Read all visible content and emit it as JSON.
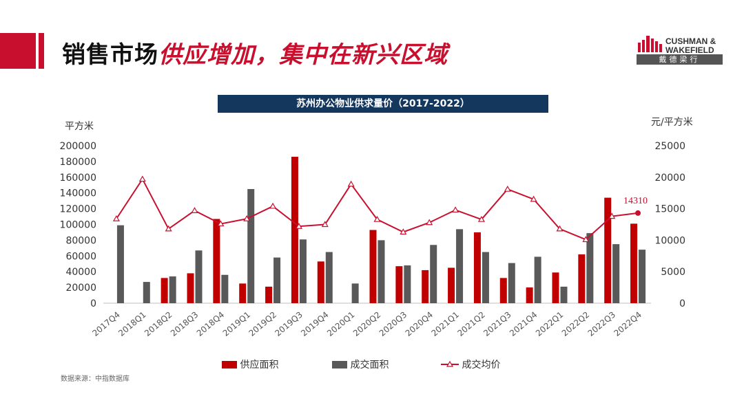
{
  "header": {
    "title_part1": "销售市场",
    "title_part2": "供应增加，集中在新兴区域"
  },
  "logo": {
    "line1": "CUSHMAN &",
    "line2": "WAKEFIELD",
    "cn": "戴德梁行"
  },
  "footer": {
    "source": "数据来源：中指数据库"
  },
  "colors": {
    "supply": "#c00000",
    "deal": "#595959",
    "price": "#c8102e",
    "title_bg": "#14375e",
    "accent": "#c8102e"
  },
  "chart_data": {
    "type": "bar",
    "title": "苏州办公物业供求量价（2017-2022）",
    "ylabel_left": "平方米",
    "ylabel_right": "元/平方米",
    "ylim_left": [
      0,
      200000
    ],
    "ylim_right": [
      0,
      25000
    ],
    "yticks_left": [
      "200000",
      "180000",
      "160000",
      "140000",
      "120000",
      "100000",
      "80000",
      "60000",
      "40000",
      "20000",
      "0"
    ],
    "yticks_right": [
      "25000",
      "20000",
      "15000",
      "10000",
      "5000",
      "0"
    ],
    "categories": [
      "2017Q4",
      "2018Q1",
      "2018Q2",
      "2018Q3",
      "2018Q4",
      "2019Q1",
      "2019Q2",
      "2019Q3",
      "2019Q4",
      "2020Q1",
      "2020Q2",
      "2020Q3",
      "2020Q4",
      "2021Q1",
      "2021Q2",
      "2021Q3",
      "2021Q4",
      "2022Q1",
      "2022Q2",
      "2022Q3",
      "2022Q4"
    ],
    "series": [
      {
        "name": "供应面积",
        "type": "bar",
        "axis": "left",
        "values": [
          0,
          0,
          32000,
          38000,
          107000,
          25000,
          21000,
          186000,
          53000,
          0,
          93000,
          47000,
          42000,
          45000,
          90000,
          32000,
          20000,
          39000,
          62000,
          134000,
          101000
        ]
      },
      {
        "name": "成交面积",
        "type": "bar",
        "axis": "left",
        "values": [
          99000,
          27000,
          34000,
          67000,
          36000,
          145000,
          58000,
          81000,
          65000,
          25000,
          80000,
          48000,
          74000,
          94000,
          65000,
          51000,
          59000,
          21000,
          89000,
          75000,
          68000
        ]
      },
      {
        "name": "成交均价",
        "type": "line",
        "axis": "right",
        "values": [
          13400,
          19700,
          11800,
          14700,
          12600,
          13400,
          15400,
          12200,
          12500,
          18900,
          13300,
          11300,
          12800,
          14800,
          13300,
          18100,
          16500,
          11800,
          10100,
          13800,
          14310
        ]
      }
    ],
    "annotation": "14310",
    "legend": "bottom"
  }
}
